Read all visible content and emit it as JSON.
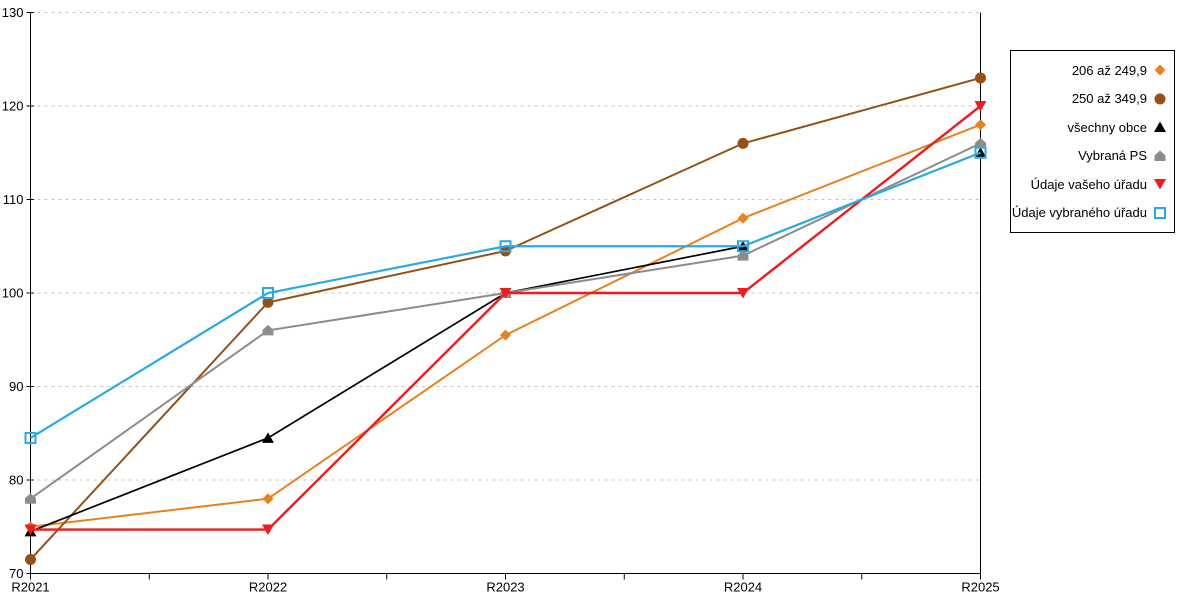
{
  "chart_data": {
    "type": "line",
    "title": "",
    "xlabel": "",
    "ylabel": "",
    "categories": [
      "R2021",
      "R2022",
      "R2023",
      "R2024",
      "R2025"
    ],
    "series": [
      {
        "name": "206 až 249,9",
        "color": "#E8821E",
        "marker": "diamond",
        "line_width": 2,
        "values": [
          75,
          78,
          95.5,
          108,
          118
        ]
      },
      {
        "name": "250 až 349,9",
        "color": "#955115",
        "marker": "circle",
        "line_width": 2,
        "values": [
          71.5,
          99,
          104.5,
          116,
          123
        ]
      },
      {
        "name": "všechny obce",
        "color": "#000000",
        "marker": "triangle-up",
        "line_width": 1.7,
        "values": [
          74.5,
          84.5,
          100,
          105,
          115
        ]
      },
      {
        "name": "Vybraná PS",
        "color": "#8C8C8C",
        "marker": "pentagon",
        "line_width": 2,
        "values": [
          78,
          96,
          100,
          104,
          116
        ]
      },
      {
        "name": "Údaje vašeho úřadu",
        "color": "#EE1C1C",
        "marker": "triangle-down",
        "line_width": 2.4,
        "values": [
          74.7,
          74.7,
          100,
          100,
          120
        ]
      },
      {
        "name": "Údaje vybraného úřadu",
        "color": "#29ABE2",
        "marker": "square-open",
        "line_width": 2.2,
        "values": [
          84.5,
          100,
          105,
          105,
          115
        ]
      }
    ],
    "ylim": [
      70,
      130
    ],
    "yticks": [
      70,
      80,
      90,
      100,
      110,
      120,
      130
    ],
    "grid": "horizontal-dotted",
    "grid_color": "#C3C3C3",
    "axis_color": "#000000",
    "legend_position": "right"
  }
}
